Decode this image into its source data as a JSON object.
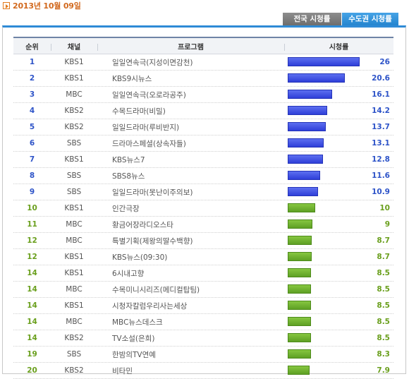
{
  "date": "2013년 10월 09일",
  "tabs": [
    {
      "label": "전국 시청률",
      "active": false
    },
    {
      "label": "수도권 시청률",
      "active": true
    }
  ],
  "table": {
    "headers": {
      "rank": "순위",
      "channel": "채널",
      "program": "프로그램",
      "rating": "시청률"
    },
    "scale_max": 26,
    "rows": [
      {
        "rank": "1",
        "channel": "KBS1",
        "program": "일일연속극(지성이면감천)",
        "rating": "26",
        "value": 26,
        "color": "blue"
      },
      {
        "rank": "2",
        "channel": "KBS1",
        "program": "KBS9시뉴스",
        "rating": "20.6",
        "value": 20.6,
        "color": "blue"
      },
      {
        "rank": "3",
        "channel": "MBC",
        "program": "일일연속극(오로라공주)",
        "rating": "16.1",
        "value": 16.1,
        "color": "blue"
      },
      {
        "rank": "4",
        "channel": "KBS2",
        "program": "수목드라마(비밀)",
        "rating": "14.2",
        "value": 14.2,
        "color": "blue"
      },
      {
        "rank": "5",
        "channel": "KBS2",
        "program": "일일드라마(루비반지)",
        "rating": "13.7",
        "value": 13.7,
        "color": "blue"
      },
      {
        "rank": "6",
        "channel": "SBS",
        "program": "드라마스페셜(상속자들)",
        "rating": "13.1",
        "value": 13.1,
        "color": "blue"
      },
      {
        "rank": "7",
        "channel": "KBS1",
        "program": "KBS뉴스7",
        "rating": "12.8",
        "value": 12.8,
        "color": "blue"
      },
      {
        "rank": "8",
        "channel": "SBS",
        "program": "SBS8뉴스",
        "rating": "11.6",
        "value": 11.6,
        "color": "blue"
      },
      {
        "rank": "9",
        "channel": "SBS",
        "program": "일일드라마(못난이주의보)",
        "rating": "10.9",
        "value": 10.9,
        "color": "blue"
      },
      {
        "rank": "10",
        "channel": "KBS1",
        "program": "인간극장",
        "rating": "10",
        "value": 10,
        "color": "green"
      },
      {
        "rank": "11",
        "channel": "MBC",
        "program": "황금어장라디오스타",
        "rating": "9",
        "value": 9,
        "color": "green"
      },
      {
        "rank": "12",
        "channel": "MBC",
        "program": "특별기획(제왕의딸수백향)",
        "rating": "8.7",
        "value": 8.7,
        "color": "green"
      },
      {
        "rank": "12",
        "channel": "KBS1",
        "program": "KBS뉴스(09:30)",
        "rating": "8.7",
        "value": 8.7,
        "color": "green"
      },
      {
        "rank": "14",
        "channel": "KBS1",
        "program": "6시내고향",
        "rating": "8.5",
        "value": 8.5,
        "color": "green"
      },
      {
        "rank": "14",
        "channel": "MBC",
        "program": "수목미니시리즈(메디컬탑팀)",
        "rating": "8.5",
        "value": 8.5,
        "color": "green"
      },
      {
        "rank": "14",
        "channel": "KBS1",
        "program": "시청자칼럼우리사는세상",
        "rating": "8.5",
        "value": 8.5,
        "color": "green"
      },
      {
        "rank": "14",
        "channel": "MBC",
        "program": "MBC뉴스데스크",
        "rating": "8.5",
        "value": 8.5,
        "color": "green"
      },
      {
        "rank": "14",
        "channel": "KBS2",
        "program": "TV소설(은희)",
        "rating": "8.5",
        "value": 8.5,
        "color": "green"
      },
      {
        "rank": "19",
        "channel": "SBS",
        "program": "한밤의TV연예",
        "rating": "8.3",
        "value": 8.3,
        "color": "green"
      },
      {
        "rank": "20",
        "channel": "KBS2",
        "program": "비타민",
        "rating": "7.9",
        "value": 7.9,
        "color": "green"
      }
    ]
  }
}
